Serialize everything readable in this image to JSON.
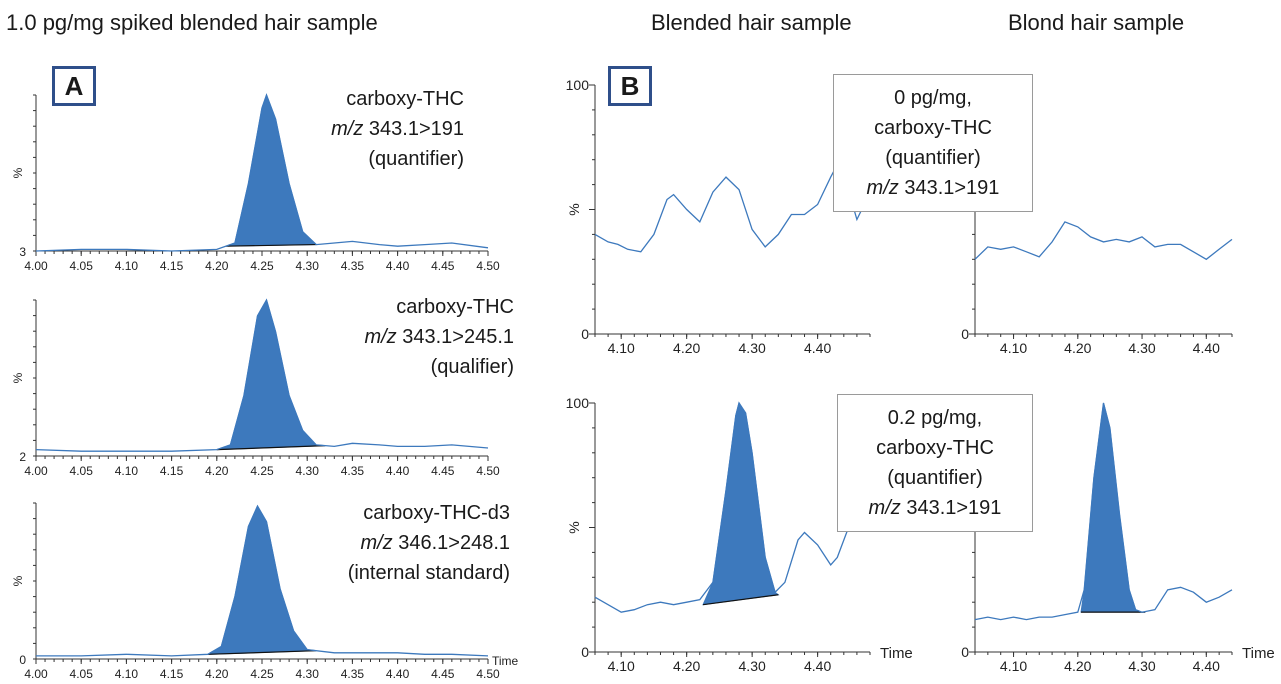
{
  "titles": {
    "left": "1.0 pg/mg spiked blended hair sample",
    "middle": "Blended hair sample",
    "right": "Blond hair sample"
  },
  "panel_labels": {
    "a": "A",
    "b": "B"
  },
  "colors": {
    "fill": "#3d79bd",
    "line": "#3d79bd",
    "axis": "#333333",
    "baseline": "#111111"
  },
  "ylabel": "%",
  "time_label": "Time",
  "panel_a_labels": [
    {
      "name": "carboxy-THC",
      "mz_prefix": "m/z",
      "mz": "343.1>191",
      "role": "(quantifier)"
    },
    {
      "name": "carboxy-THC",
      "mz_prefix": "m/z",
      "mz": "343.1>245.1",
      "role": "(qualifier)"
    },
    {
      "name": "carboxy-THC-d3",
      "mz_prefix": "m/z",
      "mz": "346.1>248.1",
      "role": "(internal standard)"
    }
  ],
  "callouts": [
    {
      "line1": "0 pg/mg,",
      "line2": "carboxy-THC",
      "line3": "(quantifier)",
      "mz_prefix": "m/z",
      "mz": "343.1>191"
    },
    {
      "line1": "0.2 pg/mg,",
      "line2": "carboxy-THC",
      "line3": "(quantifier)",
      "mz_prefix": "m/z",
      "mz": "343.1>191"
    }
  ],
  "chart_data": [
    {
      "type": "area",
      "panel": "A1",
      "xlim": [
        4.0,
        4.5
      ],
      "ylim": [
        3,
        100
      ],
      "xticks": [
        "4.00",
        "4.05",
        "4.10",
        "4.15",
        "4.20",
        "4.25",
        "4.30",
        "4.35",
        "4.40",
        "4.45",
        "4.50"
      ],
      "ytick_min_label": "3",
      "trace": [
        [
          4.0,
          3
        ],
        [
          4.05,
          4
        ],
        [
          4.1,
          4
        ],
        [
          4.15,
          3
        ],
        [
          4.2,
          4
        ],
        [
          4.22,
          8
        ],
        [
          4.235,
          45
        ],
        [
          4.25,
          92
        ],
        [
          4.255,
          100
        ],
        [
          4.265,
          85
        ],
        [
          4.28,
          45
        ],
        [
          4.295,
          15
        ],
        [
          4.31,
          7
        ],
        [
          4.33,
          8
        ],
        [
          4.35,
          9
        ],
        [
          4.38,
          7
        ],
        [
          4.4,
          6
        ],
        [
          4.43,
          7
        ],
        [
          4.46,
          8
        ],
        [
          4.5,
          5
        ]
      ],
      "peak_range": [
        4.21,
        4.31
      ]
    },
    {
      "type": "area",
      "panel": "A2",
      "xlim": [
        4.0,
        4.5
      ],
      "ylim": [
        2,
        100
      ],
      "xticks": [
        "4.00",
        "4.05",
        "4.10",
        "4.15",
        "4.20",
        "4.25",
        "4.30",
        "4.35",
        "4.40",
        "4.45",
        "4.50"
      ],
      "ytick_min_label": "2",
      "trace": [
        [
          4.0,
          6
        ],
        [
          4.05,
          5
        ],
        [
          4.1,
          5
        ],
        [
          4.15,
          5
        ],
        [
          4.2,
          6
        ],
        [
          4.215,
          9
        ],
        [
          4.23,
          40
        ],
        [
          4.245,
          90
        ],
        [
          4.255,
          100
        ],
        [
          4.265,
          80
        ],
        [
          4.28,
          40
        ],
        [
          4.295,
          18
        ],
        [
          4.31,
          9
        ],
        [
          4.33,
          8
        ],
        [
          4.35,
          10
        ],
        [
          4.38,
          9
        ],
        [
          4.4,
          8
        ],
        [
          4.43,
          8
        ],
        [
          4.46,
          9
        ],
        [
          4.5,
          7
        ]
      ],
      "peak_range": [
        4.2,
        4.32
      ]
    },
    {
      "type": "area",
      "panel": "A3",
      "xlim": [
        4.0,
        4.5
      ],
      "ylim": [
        0,
        100
      ],
      "xticks": [
        "4.00",
        "4.05",
        "4.10",
        "4.15",
        "4.20",
        "4.25",
        "4.30",
        "4.35",
        "4.40",
        "4.45",
        "4.50"
      ],
      "ytick_min_label": "0",
      "xlabel": "Time",
      "trace": [
        [
          4.0,
          2
        ],
        [
          4.05,
          2
        ],
        [
          4.1,
          3
        ],
        [
          4.15,
          2
        ],
        [
          4.19,
          3
        ],
        [
          4.205,
          8
        ],
        [
          4.22,
          40
        ],
        [
          4.235,
          85
        ],
        [
          4.245,
          98
        ],
        [
          4.255,
          88
        ],
        [
          4.27,
          45
        ],
        [
          4.285,
          18
        ],
        [
          4.3,
          6
        ],
        [
          4.33,
          4
        ],
        [
          4.35,
          4
        ],
        [
          4.38,
          4
        ],
        [
          4.4,
          4
        ],
        [
          4.43,
          3
        ],
        [
          4.46,
          3
        ],
        [
          4.5,
          2
        ]
      ],
      "peak_range": [
        4.19,
        4.31
      ]
    },
    {
      "type": "line",
      "panel": "B1",
      "xlim": [
        4.06,
        4.48
      ],
      "ylim": [
        0,
        100
      ],
      "xticks": [
        "4.10",
        "4.20",
        "4.30",
        "4.40"
      ],
      "yticks": [
        "0",
        "%",
        "100"
      ],
      "trace": [
        [
          4.06,
          40
        ],
        [
          4.08,
          37
        ],
        [
          4.095,
          36
        ],
        [
          4.11,
          34
        ],
        [
          4.13,
          33
        ],
        [
          4.15,
          40
        ],
        [
          4.17,
          54
        ],
        [
          4.18,
          56
        ],
        [
          4.2,
          50
        ],
        [
          4.22,
          45
        ],
        [
          4.24,
          57
        ],
        [
          4.26,
          63
        ],
        [
          4.28,
          58
        ],
        [
          4.3,
          42
        ],
        [
          4.32,
          35
        ],
        [
          4.34,
          40
        ],
        [
          4.36,
          48
        ],
        [
          4.38,
          48
        ],
        [
          4.4,
          52
        ],
        [
          4.42,
          63
        ],
        [
          4.43,
          68
        ],
        [
          4.45,
          55
        ],
        [
          4.46,
          46
        ],
        [
          4.475,
          54
        ]
      ]
    },
    {
      "type": "line",
      "panel": "B2",
      "xlim": [
        4.04,
        4.44
      ],
      "ylim": [
        0,
        100
      ],
      "xticks": [
        "4.10",
        "4.20",
        "4.30",
        "4.40"
      ],
      "yticks": [
        "0"
      ],
      "trace": [
        [
          4.04,
          30
        ],
        [
          4.06,
          35
        ],
        [
          4.08,
          34
        ],
        [
          4.1,
          35
        ],
        [
          4.12,
          33
        ],
        [
          4.14,
          31
        ],
        [
          4.16,
          37
        ],
        [
          4.18,
          45
        ],
        [
          4.2,
          43
        ],
        [
          4.22,
          39
        ],
        [
          4.24,
          37
        ],
        [
          4.26,
          38
        ],
        [
          4.28,
          37
        ],
        [
          4.3,
          39
        ],
        [
          4.32,
          35
        ],
        [
          4.34,
          36
        ],
        [
          4.36,
          36
        ],
        [
          4.38,
          33
        ],
        [
          4.4,
          30
        ],
        [
          4.42,
          34
        ],
        [
          4.44,
          38
        ]
      ]
    },
    {
      "type": "area",
      "panel": "B3",
      "xlim": [
        4.06,
        4.48
      ],
      "ylim": [
        0,
        100
      ],
      "xticks": [
        "4.10",
        "4.20",
        "4.30",
        "4.40"
      ],
      "yticks": [
        "0",
        "%",
        "100"
      ],
      "xlabel": "Time",
      "trace": [
        [
          4.06,
          22
        ],
        [
          4.08,
          19
        ],
        [
          4.1,
          16
        ],
        [
          4.12,
          17
        ],
        [
          4.14,
          19
        ],
        [
          4.16,
          20
        ],
        [
          4.18,
          19
        ],
        [
          4.2,
          20
        ],
        [
          4.22,
          21
        ],
        [
          4.24,
          28
        ],
        [
          4.26,
          65
        ],
        [
          4.275,
          95
        ],
        [
          4.28,
          100
        ],
        [
          4.29,
          96
        ],
        [
          4.3,
          80
        ],
        [
          4.32,
          38
        ],
        [
          4.335,
          24
        ],
        [
          4.35,
          28
        ],
        [
          4.37,
          45
        ],
        [
          4.38,
          48
        ],
        [
          4.4,
          43
        ],
        [
          4.42,
          35
        ],
        [
          4.43,
          38
        ],
        [
          4.45,
          52
        ],
        [
          4.47,
          62
        ]
      ],
      "peak_range": [
        4.225,
        4.34
      ],
      "baseline_line": [
        [
          4.225,
          19
        ],
        [
          4.34,
          23
        ]
      ]
    },
    {
      "type": "area",
      "panel": "B4",
      "xlim": [
        4.04,
        4.44
      ],
      "ylim": [
        0,
        100
      ],
      "xticks": [
        "4.10",
        "4.20",
        "4.30",
        "4.40"
      ],
      "yticks": [
        "0"
      ],
      "xlabel": "Time",
      "trace": [
        [
          4.04,
          13
        ],
        [
          4.06,
          14
        ],
        [
          4.08,
          13
        ],
        [
          4.1,
          14
        ],
        [
          4.12,
          13
        ],
        [
          4.14,
          14
        ],
        [
          4.16,
          14
        ],
        [
          4.18,
          15
        ],
        [
          4.2,
          16
        ],
        [
          4.21,
          25
        ],
        [
          4.225,
          70
        ],
        [
          4.24,
          100
        ],
        [
          4.25,
          90
        ],
        [
          4.265,
          55
        ],
        [
          4.28,
          25
        ],
        [
          4.29,
          17
        ],
        [
          4.3,
          16
        ],
        [
          4.32,
          17
        ],
        [
          4.34,
          25
        ],
        [
          4.36,
          26
        ],
        [
          4.38,
          24
        ],
        [
          4.4,
          20
        ],
        [
          4.42,
          22
        ],
        [
          4.44,
          25
        ]
      ],
      "peak_range": [
        4.205,
        4.305
      ],
      "baseline_line": [
        [
          4.205,
          16
        ],
        [
          4.305,
          16
        ]
      ]
    }
  ]
}
